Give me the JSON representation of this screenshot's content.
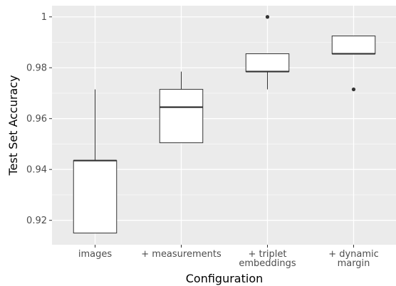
{
  "chart_data": {
    "type": "box",
    "title": "",
    "xlabel": "Configuration",
    "ylabel": "Test Set Accuracy",
    "ylim": [
      0.9104,
      1.0044
    ],
    "yticks": [
      0.92,
      0.94,
      0.96,
      0.98,
      1.0
    ],
    "ytick_labels": [
      "0.92",
      "0.94",
      "0.96",
      "0.98",
      "1"
    ],
    "grid": true,
    "legend": "none",
    "background": "#ebebeb",
    "categories": [
      {
        "lines": [
          "images"
        ]
      },
      {
        "lines": [
          "+ measurements"
        ]
      },
      {
        "lines": [
          "+ triplet",
          "embeddings"
        ]
      },
      {
        "lines": [
          "+ dynamic",
          "margin"
        ]
      }
    ],
    "boxes": [
      {
        "whisker_low": 0.915,
        "q1": 0.915,
        "median": 0.9435,
        "q3": 0.9435,
        "whisker_high": 0.9715,
        "outliers": []
      },
      {
        "whisker_low": 0.9505,
        "q1": 0.9505,
        "median": 0.9645,
        "q3": 0.9715,
        "whisker_high": 0.9785,
        "outliers": []
      },
      {
        "whisker_low": 0.9715,
        "q1": 0.9785,
        "median": 0.9785,
        "q3": 0.9855,
        "whisker_high": 0.9855,
        "outliers": [
          1.0
        ]
      },
      {
        "whisker_low": 0.9855,
        "q1": 0.9855,
        "median": 0.9855,
        "q3": 0.9925,
        "whisker_high": 0.9925,
        "outliers": [
          0.9715
        ]
      }
    ]
  }
}
